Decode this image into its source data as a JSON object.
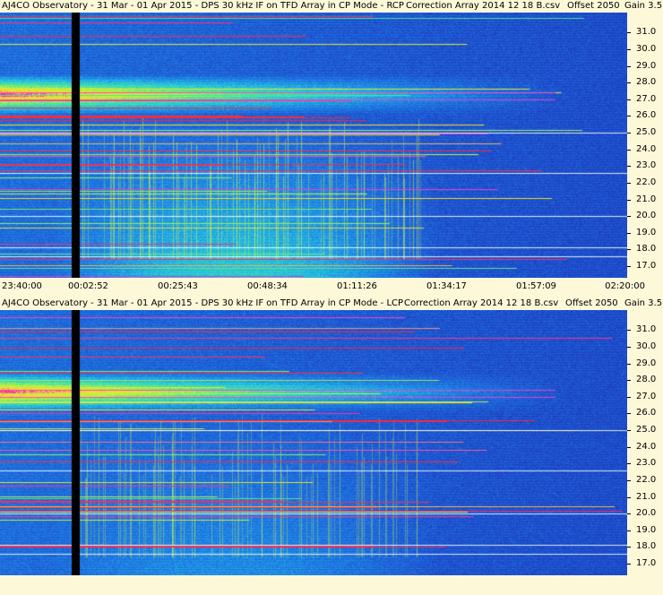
{
  "chart_data": [
    {
      "type": "heatmap",
      "title": "AJ4CO Observatory - 31 Mar - 01 Apr 2015 - DPS 30 kHz IF on TFD Array in CP Mode - RCP",
      "correction": "Correction Array 2014 12 18 B.csv",
      "offset": "Offset 2050",
      "gain": "Gain 3.5",
      "y_ticks": [
        "31.0",
        "30.0",
        "29.0",
        "28.0",
        "27.0",
        "26.0",
        "25.0",
        "24.0",
        "23.0",
        "22.0",
        "21.0",
        "20.0",
        "19.0",
        "18.0",
        "17.0"
      ],
      "ylim": [
        16.3,
        32.2
      ],
      "x_ticks": [
        "23:40:00",
        "00:02:52",
        "00:25:43",
        "00:48:34",
        "01:11:26",
        "01:34:17",
        "01:57:09",
        "02:20:00"
      ]
    },
    {
      "type": "heatmap",
      "title": "AJ4CO Observatory - 31 Mar - 01 Apr 2015 - DPS 30 kHz IF on TFD Array in CP Mode - LCP",
      "correction": "Correction Array 2014 12 18 B.csv",
      "offset": "Offset 2050",
      "gain": "Gain 3.5",
      "y_ticks": [
        "31.0",
        "30.0",
        "29.0",
        "28.0",
        "27.0",
        "26.0",
        "25.0",
        "24.0",
        "23.0",
        "22.0",
        "21.0",
        "20.0",
        "19.0",
        "18.0",
        "17.0"
      ],
      "ylim": [
        16.3,
        32.2
      ],
      "x_ticks": []
    }
  ]
}
